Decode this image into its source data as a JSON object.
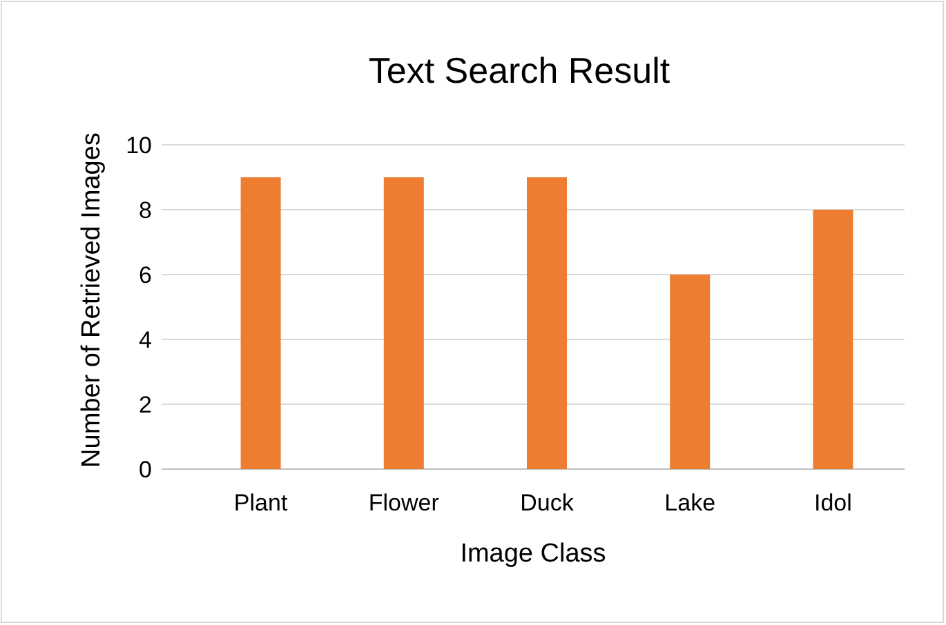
{
  "chart_data": {
    "type": "bar",
    "title": "Text Search Result",
    "xlabel": "Image Class",
    "ylabel": "Number of Retrieved Images",
    "categories": [
      "Plant",
      "Flower",
      "Duck",
      "Lake",
      "Idol"
    ],
    "values": [
      9,
      9,
      9,
      6,
      8
    ],
    "color": "#ed7d31",
    "ylim": [
      0,
      10
    ],
    "yticks": [
      0,
      2,
      4,
      6,
      8,
      10
    ],
    "grid": "y"
  }
}
